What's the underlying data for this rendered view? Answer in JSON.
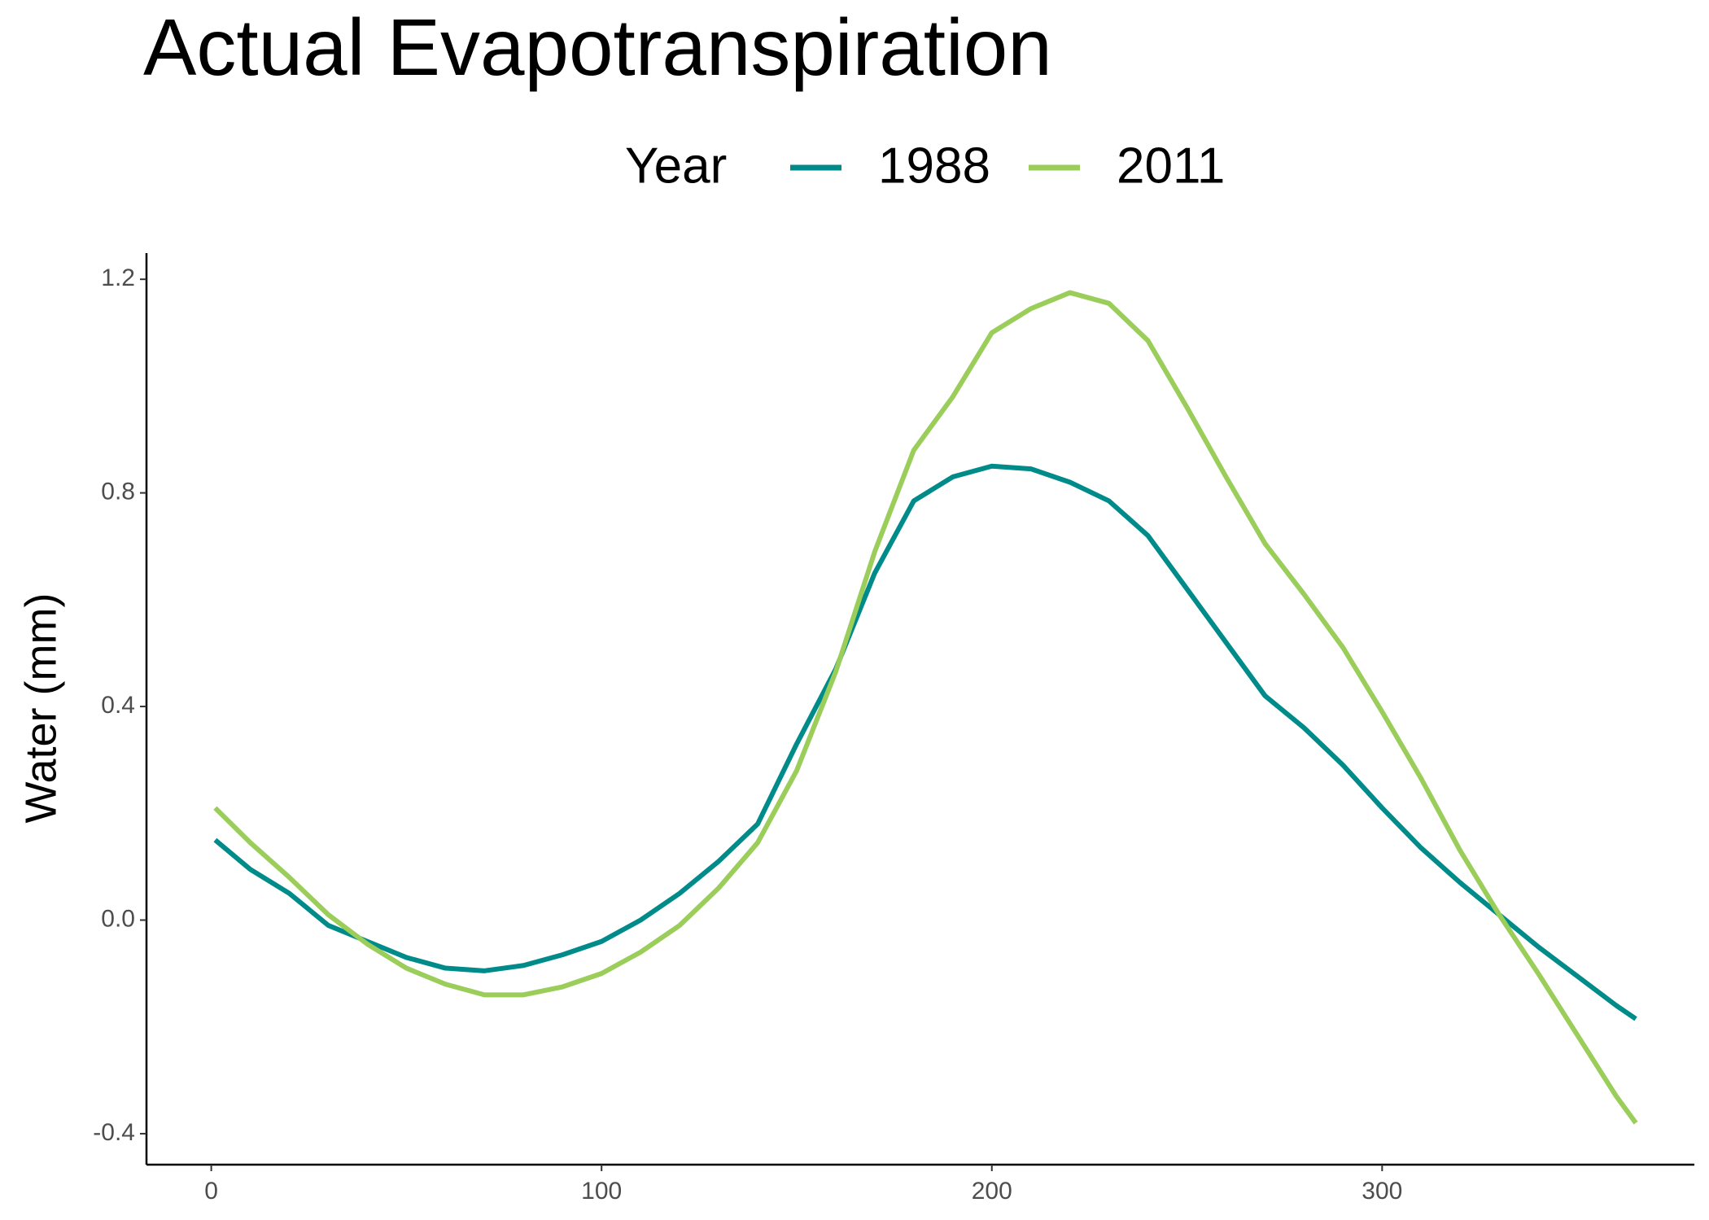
{
  "chart_data": {
    "type": "line",
    "title": "Actual Evapotranspiration",
    "y_label": "Water (mm)",
    "legend_title": "Year",
    "legend_position": "top",
    "x": [
      1,
      10,
      20,
      30,
      40,
      50,
      60,
      70,
      80,
      90,
      100,
      110,
      120,
      130,
      140,
      150,
      160,
      170,
      180,
      190,
      200,
      210,
      220,
      230,
      240,
      250,
      260,
      270,
      280,
      290,
      300,
      310,
      320,
      330,
      340,
      350,
      360,
      365
    ],
    "series": [
      {
        "name": "1988",
        "color": "#008b8b",
        "values": [
          0.15,
          0.095,
          0.05,
          -0.01,
          -0.04,
          -0.07,
          -0.09,
          -0.095,
          -0.085,
          -0.065,
          -0.04,
          0.0,
          0.05,
          0.11,
          0.18,
          0.33,
          0.47,
          0.65,
          0.785,
          0.83,
          0.85,
          0.845,
          0.82,
          0.785,
          0.72,
          0.62,
          0.52,
          0.42,
          0.36,
          0.29,
          0.21,
          0.135,
          0.07,
          0.01,
          -0.05,
          -0.105,
          -0.16,
          -0.185
        ]
      },
      {
        "name": "2011",
        "color": "#9acd5a",
        "values": [
          0.21,
          0.145,
          0.08,
          0.01,
          -0.045,
          -0.09,
          -0.12,
          -0.14,
          -0.14,
          -0.125,
          -0.1,
          -0.06,
          -0.01,
          0.06,
          0.145,
          0.28,
          0.465,
          0.69,
          0.88,
          0.98,
          1.1,
          1.145,
          1.175,
          1.155,
          1.085,
          0.96,
          0.83,
          0.705,
          0.61,
          0.51,
          0.39,
          0.265,
          0.13,
          0.01,
          -0.1,
          -0.215,
          -0.33,
          -0.38
        ]
      }
    ],
    "xlim": [
      -16.6,
      380
    ],
    "xticks": [
      0,
      100,
      200,
      300
    ],
    "ylim": [
      -0.458,
      1.249
    ],
    "yticks": [
      {
        "value": -0.4,
        "label": "-0.4"
      },
      {
        "value": 0,
        "label": "0.0"
      },
      {
        "value": 0.4,
        "label": "0.4"
      },
      {
        "value": 0.8,
        "label": "0.8"
      },
      {
        "value": 1.2,
        "label": "1.2"
      }
    ],
    "grid": false
  }
}
